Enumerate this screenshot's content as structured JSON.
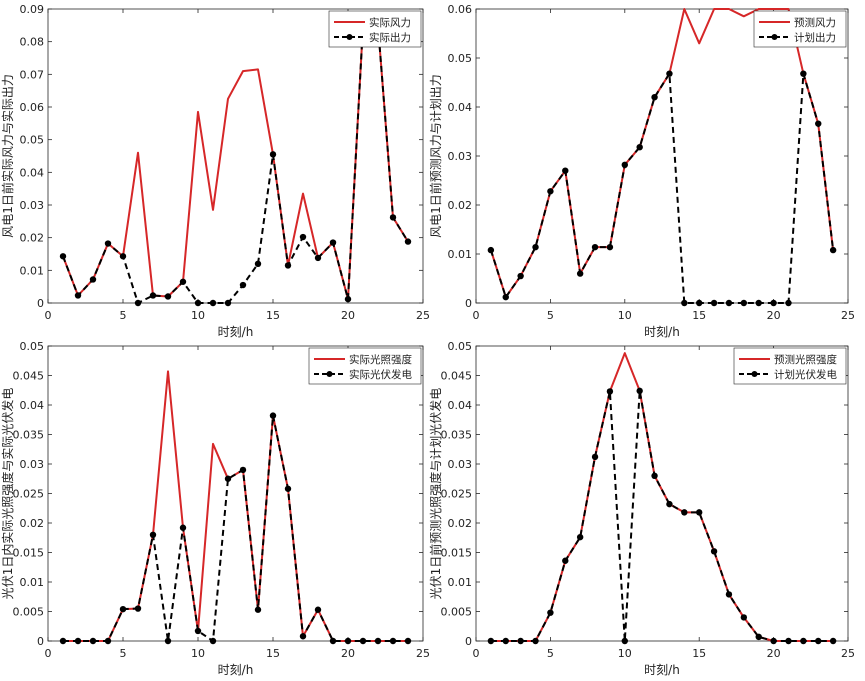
{
  "colors": {
    "actual": "#d62728",
    "plan": "#000000",
    "axis": "#262626",
    "bg": "#ffffff"
  },
  "chart_data": [
    {
      "type": "line",
      "xlabel": "时刻/h",
      "ylabel": "风电1日前实际风力与实际出力",
      "xlim": [
        0,
        25
      ],
      "ylim": [
        0,
        0.09
      ],
      "xticks": [
        0,
        5,
        10,
        15,
        20,
        25
      ],
      "yticks": [
        0,
        0.01,
        0.02,
        0.03,
        0.04,
        0.05,
        0.06,
        0.07,
        0.08,
        0.09
      ],
      "grid": false,
      "legend_position": "top-right",
      "x": [
        1,
        2,
        3,
        4,
        5,
        6,
        7,
        8,
        9,
        10,
        11,
        12,
        13,
        14,
        15,
        16,
        17,
        18,
        19,
        20,
        21,
        22,
        23,
        24
      ],
      "series": [
        {
          "name": "实际风力",
          "style": "solid",
          "color": "#d62728",
          "values": [
            0.0143,
            0.0023,
            0.0072,
            0.0182,
            0.0143,
            0.046,
            0.0023,
            0.002,
            0.0065,
            0.0585,
            0.0285,
            0.0625,
            0.071,
            0.0715,
            0.0455,
            0.0115,
            0.0335,
            0.0138,
            0.0185,
            0.0012,
            0.085,
            0.085,
            0.0262,
            0.0188
          ]
        },
        {
          "name": "实际出力",
          "style": "dashed",
          "color": "#000000",
          "markers": true,
          "values": [
            0.0143,
            0.0023,
            0.0072,
            0.0182,
            0.0143,
            0.0,
            0.0023,
            0.002,
            0.0065,
            0.0,
            0.0,
            0.0,
            0.0055,
            0.012,
            0.0455,
            0.0115,
            0.0202,
            0.0138,
            0.0185,
            0.0012,
            0.085,
            0.085,
            0.0262,
            0.0188
          ]
        }
      ]
    },
    {
      "type": "line",
      "xlabel": "时刻/h",
      "ylabel": "风电1日前预测风力与计划出力",
      "xlim": [
        0,
        25
      ],
      "ylim": [
        0,
        0.06
      ],
      "xticks": [
        0,
        5,
        10,
        15,
        20,
        25
      ],
      "yticks": [
        0,
        0.01,
        0.02,
        0.03,
        0.04,
        0.05,
        0.06
      ],
      "grid": false,
      "legend_position": "top-right",
      "x": [
        1,
        2,
        3,
        4,
        5,
        6,
        7,
        8,
        9,
        10,
        11,
        12,
        13,
        14,
        15,
        16,
        17,
        18,
        19,
        20,
        21,
        22,
        23,
        24
      ],
      "series": [
        {
          "name": "预测风力",
          "style": "solid",
          "color": "#d62728",
          "values": [
            0.0108,
            0.0012,
            0.0055,
            0.0114,
            0.0228,
            0.027,
            0.006,
            0.0114,
            0.0114,
            0.0282,
            0.0318,
            0.042,
            0.0468,
            0.06,
            0.053,
            0.06,
            0.06,
            0.0585,
            0.06,
            0.06,
            0.06,
            0.0468,
            0.0366,
            0.0108
          ]
        },
        {
          "name": "计划出力",
          "style": "dashed",
          "color": "#000000",
          "markers": true,
          "values": [
            0.0108,
            0.0012,
            0.0055,
            0.0114,
            0.0228,
            0.027,
            0.006,
            0.0114,
            0.0114,
            0.0282,
            0.0318,
            0.042,
            0.0468,
            0,
            0,
            0,
            0,
            0,
            0,
            0,
            0,
            0.0468,
            0.0366,
            0.0108
          ]
        }
      ]
    },
    {
      "type": "line",
      "xlabel": "时刻/h",
      "ylabel": "光伏1日内实际光照强度与实际光伏发电",
      "xlim": [
        0,
        25
      ],
      "ylim": [
        0,
        0.05
      ],
      "xticks": [
        0,
        5,
        10,
        15,
        20,
        25
      ],
      "yticks": [
        0,
        0.005,
        0.01,
        0.015,
        0.02,
        0.025,
        0.03,
        0.035,
        0.04,
        0.045,
        0.05
      ],
      "grid": false,
      "legend_position": "top-right",
      "x": [
        1,
        2,
        3,
        4,
        5,
        6,
        7,
        8,
        9,
        10,
        11,
        12,
        13,
        14,
        15,
        16,
        17,
        18,
        19,
        20,
        21,
        22,
        23,
        24
      ],
      "series": [
        {
          "name": "实际光照强度",
          "style": "solid",
          "color": "#d62728",
          "values": [
            0,
            0,
            0,
            0,
            0.0054,
            0.0055,
            0.018,
            0.0457,
            0.0192,
            0.0017,
            0.0334,
            0.0275,
            0.029,
            0.0053,
            0.0382,
            0.0258,
            0.0008,
            0.0053,
            0,
            0,
            0,
            0,
            0,
            0
          ]
        },
        {
          "name": "实际光伏发电",
          "style": "dashed",
          "color": "#000000",
          "markers": true,
          "values": [
            0,
            0,
            0,
            0,
            0.0054,
            0.0055,
            0.018,
            0.0,
            0.0192,
            0.0017,
            0.0,
            0.0275,
            0.029,
            0.0053,
            0.0382,
            0.0258,
            0.0008,
            0.0053,
            0,
            0,
            0,
            0,
            0,
            0
          ]
        }
      ]
    },
    {
      "type": "line",
      "xlabel": "时刻/h",
      "ylabel": "光伏1日前预测光照强度与计划光伏发电",
      "xlim": [
        0,
        25
      ],
      "ylim": [
        0,
        0.05
      ],
      "xticks": [
        0,
        5,
        10,
        15,
        20,
        25
      ],
      "yticks": [
        0,
        0.005,
        0.01,
        0.015,
        0.02,
        0.025,
        0.03,
        0.035,
        0.04,
        0.045,
        0.05
      ],
      "grid": false,
      "legend_position": "top-right",
      "x": [
        1,
        2,
        3,
        4,
        5,
        6,
        7,
        8,
        9,
        10,
        11,
        12,
        13,
        14,
        15,
        16,
        17,
        18,
        19,
        20,
        21,
        22,
        23,
        24
      ],
      "series": [
        {
          "name": "预测光照强度",
          "style": "solid",
          "color": "#d62728",
          "values": [
            0,
            0,
            0,
            0,
            0.0048,
            0.0136,
            0.0176,
            0.0312,
            0.0423,
            0.0488,
            0.0424,
            0.028,
            0.0232,
            0.0218,
            0.0218,
            0.0152,
            0.0079,
            0.004,
            0.0007,
            0,
            0,
            0,
            0,
            0
          ]
        },
        {
          "name": "计划光伏发电",
          "style": "dashed",
          "color": "#000000",
          "markers": true,
          "values": [
            0,
            0,
            0,
            0,
            0.0048,
            0.0136,
            0.0176,
            0.0312,
            0.0423,
            0.0,
            0.0424,
            0.028,
            0.0232,
            0.0218,
            0.0218,
            0.0152,
            0.0079,
            0.004,
            0.0007,
            0,
            0,
            0,
            0,
            0
          ]
        }
      ]
    }
  ]
}
